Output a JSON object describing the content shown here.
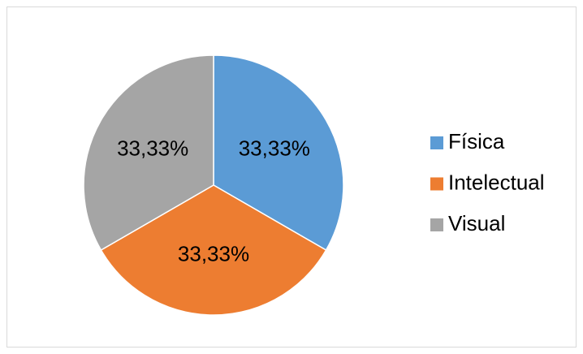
{
  "chart_data": {
    "type": "pie",
    "categories": [
      "Física",
      "Intelectual",
      "Visual"
    ],
    "values": [
      33.33,
      33.33,
      33.33
    ],
    "value_labels": [
      "33,33%",
      "33,33%",
      "33,33%"
    ],
    "colors": [
      "#5b9bd5",
      "#ed7d31",
      "#a5a5a5"
    ],
    "legend": "right"
  }
}
